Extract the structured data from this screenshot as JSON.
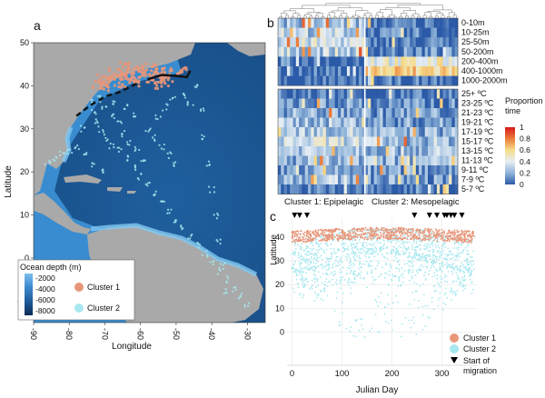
{
  "chart_data": [
    {
      "panel": "a",
      "type": "scatter",
      "xlabel": "Longitude",
      "ylabel": "Latitude",
      "xlim": [
        -90,
        -25
      ],
      "ylim": [
        -15,
        50
      ],
      "xticks": [
        -90,
        -80,
        -70,
        -60,
        -50,
        -40,
        -30
      ],
      "yticks": [
        -10,
        0,
        10,
        20,
        30,
        40,
        50
      ],
      "depth_legend": {
        "title": "Ocean depth (m)",
        "ticks": [
          "-2000",
          "-4000",
          "-6000",
          "-8000"
        ]
      },
      "series": [
        {
          "name": "Cluster 1",
          "color": "#e8967a",
          "points": [
            [
              -70,
              41.5
            ],
            [
              -67,
              42
            ],
            [
              -64,
              43
            ],
            [
              -61,
              44
            ],
            [
              -58,
              43.5
            ],
            [
              -55,
              42.5
            ],
            [
              -52,
              43
            ],
            [
              -62,
              41
            ],
            [
              -66,
              40.5
            ],
            [
              -70,
              40
            ],
            [
              -60,
              42
            ],
            [
              -56,
              41.5
            ],
            [
              -53,
              42
            ],
            [
              -49,
              43
            ],
            [
              -65,
              44.5
            ],
            [
              -68,
              43
            ],
            [
              -72,
              40.5
            ],
            [
              -63,
              42.5
            ],
            [
              -57,
              44
            ],
            [
              -54,
              40.5
            ]
          ]
        },
        {
          "name": "Cluster 2",
          "color": "#a8e8ef",
          "points": [
            [
              -74,
              36
            ],
            [
              -73,
              34
            ],
            [
              -72,
              32
            ],
            [
              -71,
              30
            ],
            [
              -70,
              28
            ],
            [
              -68,
              26
            ],
            [
              -66,
              25
            ],
            [
              -64,
              23
            ],
            [
              -62,
              21
            ],
            [
              -60,
              19
            ],
            [
              -58,
              17
            ],
            [
              -56,
              15
            ],
            [
              -54,
              13
            ],
            [
              -52,
              11
            ],
            [
              -50,
              9
            ],
            [
              -48,
              7
            ],
            [
              -46,
              5
            ],
            [
              -44,
              3
            ],
            [
              -42,
              1
            ],
            [
              -40,
              -1
            ],
            [
              -38,
              -3
            ],
            [
              -36,
              -5
            ],
            [
              -34,
              -7
            ],
            [
              -32,
              -9
            ],
            [
              -30,
              -11
            ],
            [
              -44,
              40
            ],
            [
              -43,
              34
            ],
            [
              -42,
              28
            ],
            [
              -41,
              22
            ],
            [
              -40,
              16
            ],
            [
              -39,
              10
            ],
            [
              -38,
              4
            ],
            [
              -37,
              -2
            ],
            [
              -36,
              -8
            ],
            [
              -58,
              30
            ],
            [
              -56,
              28
            ],
            [
              -54,
              26
            ],
            [
              -52,
              24
            ],
            [
              -50,
              22
            ],
            [
              -64,
              35
            ],
            [
              -62,
              33
            ],
            [
              -66,
              31
            ],
            [
              -68,
              33
            ],
            [
              -70,
              35
            ],
            [
              -72,
              37
            ],
            [
              -67,
              36
            ],
            [
              -65,
              29
            ],
            [
              -63,
              27
            ],
            [
              -61,
              25
            ],
            [
              -59,
              23
            ],
            [
              -76,
              30
            ],
            [
              -78,
              26
            ],
            [
              -80,
              25
            ],
            [
              -82,
              24
            ],
            [
              -84,
              23
            ],
            [
              -86,
              22
            ],
            [
              -75,
              24
            ],
            [
              -73,
              22
            ],
            [
              -71,
              20
            ],
            [
              -55,
              33
            ],
            [
              -53,
              35
            ],
            [
              -51,
              37
            ],
            [
              -48,
              38
            ],
            [
              -46,
              36
            ]
          ]
        }
      ],
      "fronts": [
        {
          "style": "solid",
          "points": [
            [
              -58,
              41.5
            ],
            [
              -54,
              42.5
            ],
            [
              -50,
              42.3
            ],
            [
              -47,
              42
            ],
            [
              -46,
              43.5
            ]
          ]
        },
        {
          "style": "dashed",
          "points": [
            [
              -78,
              33
            ],
            [
              -74,
              35.5
            ],
            [
              -70,
              37.5
            ],
            [
              -66,
              38.5
            ],
            [
              -61,
              40.5
            ]
          ]
        }
      ],
      "legend": {
        "location": "bottom-left",
        "entries": [
          "Cluster 1",
          "Cluster 2"
        ]
      }
    },
    {
      "panel": "b",
      "type": "heatmap",
      "colorbar_title": "Proportion of time",
      "colorbar_ticks": [
        "1",
        "0.8",
        "0.6",
        "0.4",
        "0.2",
        "0"
      ],
      "depth_bins": [
        "0-10m",
        "10-25m",
        "25-50m",
        "50-200m",
        "200-400m",
        "400-1000m",
        "1000-2000m"
      ],
      "temp_bins": [
        "25+ ºC",
        "23-25 ºC",
        "21-23 ºC",
        "19-21 ºC",
        "17-19 ºC",
        "15-17 ºC",
        "13-15 ºC",
        "11-13 ºC",
        "9-11 ºC",
        "7-9 ºC",
        "5-7 ºC"
      ],
      "cluster_labels": [
        "Cluster 1: Epipelagic",
        "Cluster 2: Mesopelagic"
      ],
      "columns_per_cluster": [
        29,
        31
      ],
      "depth_profile": {
        "epipelagic": [
          0.25,
          0.3,
          0.35,
          0.3,
          0.05,
          0.02,
          0.0
        ],
        "mesopelagic": [
          0.05,
          0.05,
          0.05,
          0.1,
          0.45,
          0.6,
          0.02
        ]
      },
      "temp_profile": {
        "epipelagic": [
          0.05,
          0.15,
          0.2,
          0.25,
          0.3,
          0.35,
          0.3,
          0.2,
          0.15,
          0.25,
          0.05
        ],
        "mesopelagic": [
          0.02,
          0.1,
          0.15,
          0.15,
          0.2,
          0.25,
          0.25,
          0.2,
          0.15,
          0.15,
          0.05
        ]
      }
    },
    {
      "panel": "c",
      "type": "scatter",
      "xlabel": "Julian Day",
      "ylabel": "Latitude",
      "xlim": [
        -10,
        370
      ],
      "ylim": [
        -14,
        48
      ],
      "xticks": [
        0,
        100,
        200,
        300
      ],
      "yticks": [
        0,
        10,
        20,
        30,
        40
      ],
      "migration_start_days": [
        5,
        15,
        30,
        245,
        275,
        290,
        305,
        310,
        318,
        325,
        340
      ],
      "series": [
        {
          "name": "Cluster 1",
          "color": "#e8967a",
          "lat_min": 34,
          "lat_max": 44
        },
        {
          "name": "Cluster 2",
          "color": "#a8e8ef",
          "lat_min": -12,
          "lat_max": 43
        }
      ],
      "legend": {
        "location": "bottom-right",
        "entries": [
          "Cluster 1",
          "Cluster 2",
          "Start of migration"
        ]
      }
    }
  ]
}
